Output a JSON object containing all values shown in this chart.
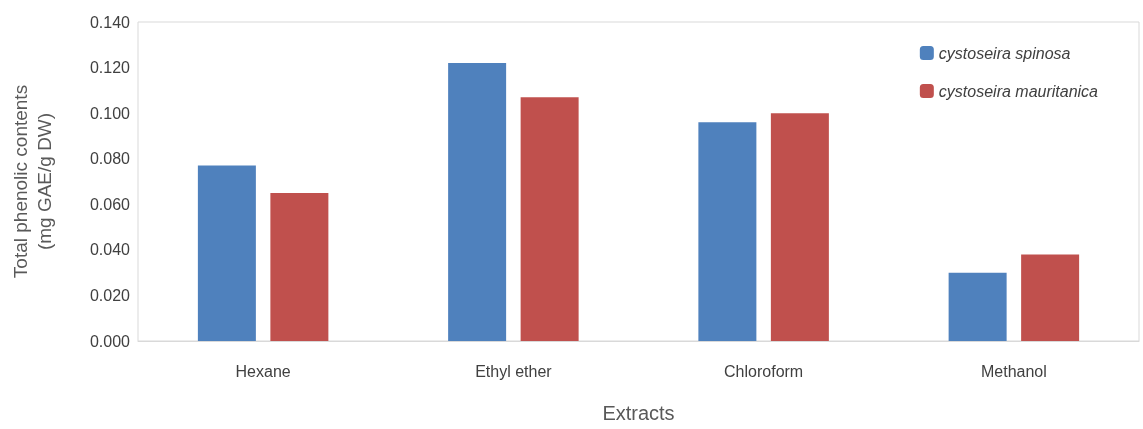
{
  "chart_data": {
    "type": "bar",
    "xlabel": "Extracts",
    "ylabel": "Total phenolic contents\n(mg GAE/g DW)",
    "categories": [
      "Hexane",
      "Ethyl ether",
      "Chloroform",
      "Methanol"
    ],
    "series": [
      {
        "name": "cystoseira spinosa",
        "color": "#4f81bd",
        "values": [
          0.077,
          0.122,
          0.096,
          0.03
        ]
      },
      {
        "name": "cystoseira mauritanica",
        "color": "#c0504d",
        "values": [
          0.065,
          0.107,
          0.1,
          0.038
        ]
      }
    ],
    "ylim": [
      0,
      0.14
    ],
    "yticks": [
      {
        "value": 0,
        "label": "0.000"
      },
      {
        "value": 0.02,
        "label": "0.020"
      },
      {
        "value": 0.04,
        "label": "0.040"
      },
      {
        "value": 0.06,
        "label": "0.060"
      },
      {
        "value": 0.08,
        "label": "0.080"
      },
      {
        "value": 0.1,
        "label": "0.100"
      },
      {
        "value": 0.12,
        "label": "0.120"
      },
      {
        "value": 0.14,
        "label": "0.140"
      }
    ],
    "grid": false,
    "legend": "top right"
  }
}
